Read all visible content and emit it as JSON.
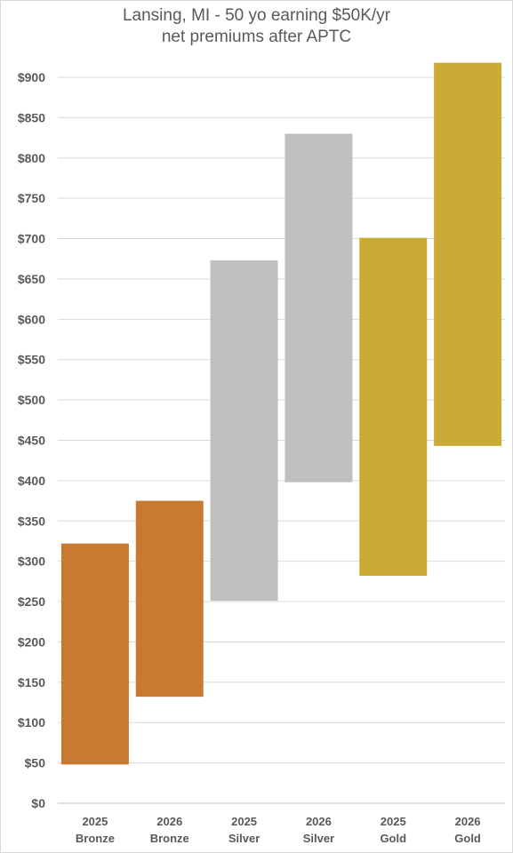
{
  "chart_data": {
    "type": "bar",
    "title_lines": [
      "Lansing, MI - 50 yo earning $50K/yr",
      "net premiums after APTC"
    ],
    "xlabel": "",
    "ylabel": "",
    "ylim": [
      0,
      900
    ],
    "y_ticks": [
      "$0",
      "$50",
      "$100",
      "$150",
      "$200",
      "$250",
      "$300",
      "$350",
      "$400",
      "$450",
      "$500",
      "$550",
      "$600",
      "$650",
      "$700",
      "$750",
      "$800",
      "$850",
      "$900"
    ],
    "y_tick_values": [
      0,
      50,
      100,
      150,
      200,
      250,
      300,
      350,
      400,
      450,
      500,
      550,
      600,
      650,
      700,
      750,
      800,
      850,
      900
    ],
    "grid": true,
    "categories": [
      [
        "2025",
        "Bronze"
      ],
      [
        "2026",
        "Bronze"
      ],
      [
        "2025",
        "Silver"
      ],
      [
        "2026",
        "Silver"
      ],
      [
        "2025",
        "Gold"
      ],
      [
        "2026",
        "Gold"
      ]
    ],
    "ranges": [
      {
        "low": 48,
        "high": 322,
        "color": "#c87a33"
      },
      {
        "low": 132,
        "high": 375,
        "color": "#c87a33"
      },
      {
        "low": 251,
        "high": 673,
        "color": "#bfbfbf"
      },
      {
        "low": 398,
        "high": 830,
        "color": "#bfbfbf"
      },
      {
        "low": 282,
        "high": 701,
        "color": "#c9ab35"
      },
      {
        "low": 443,
        "high": 918,
        "color": "#c9ab35"
      }
    ]
  }
}
